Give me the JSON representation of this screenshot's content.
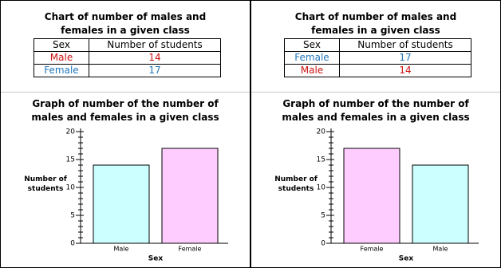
{
  "tables": [
    {
      "title": "Chart of number of males and females in a given class",
      "header": [
        "Sex",
        "Number of students"
      ],
      "rows": [
        [
          "Male",
          "14"
        ],
        [
          "Female",
          "17"
        ]
      ]
    },
    {
      "title": "Chart of number of males and females in a given class",
      "header": [
        "Sex",
        "Number of students"
      ],
      "rows": [
        [
          "Female",
          "17"
        ],
        [
          "Male",
          "14"
        ]
      ]
    }
  ],
  "chart_data": [
    {
      "type": "bar",
      "title": "Graph of number of the number of males and females in a given class",
      "x_label": "Sex",
      "y_label": "Number of students",
      "categories": [
        "Male",
        "Female"
      ],
      "values": [
        14,
        17
      ],
      "colors": [
        "#ccffff",
        "#ffccff"
      ],
      "ylim": [
        0,
        20
      ],
      "yticks": [
        0,
        5,
        10,
        15,
        20
      ],
      "yminorticks": [
        0,
        1,
        2,
        3,
        4,
        5,
        6,
        7,
        8,
        9,
        10,
        11,
        12,
        13,
        14,
        15,
        16,
        17,
        18,
        19,
        20
      ]
    },
    {
      "type": "bar",
      "title": "Graph of number of the number of males and females in a given class",
      "x_label": "Sex",
      "y_label": "Number of students",
      "categories": [
        "Female",
        "Male"
      ],
      "values": [
        17,
        14
      ],
      "colors": [
        "#ffccff",
        "#ccffff"
      ],
      "ylim": [
        0,
        20
      ],
      "yticks": [
        0,
        5,
        10,
        15,
        20
      ],
      "yminorticks": [
        0,
        1,
        2,
        3,
        4,
        5,
        6,
        7,
        8,
        9,
        10,
        11,
        12,
        13,
        14,
        15,
        16,
        17,
        18,
        19,
        20
      ]
    }
  ]
}
